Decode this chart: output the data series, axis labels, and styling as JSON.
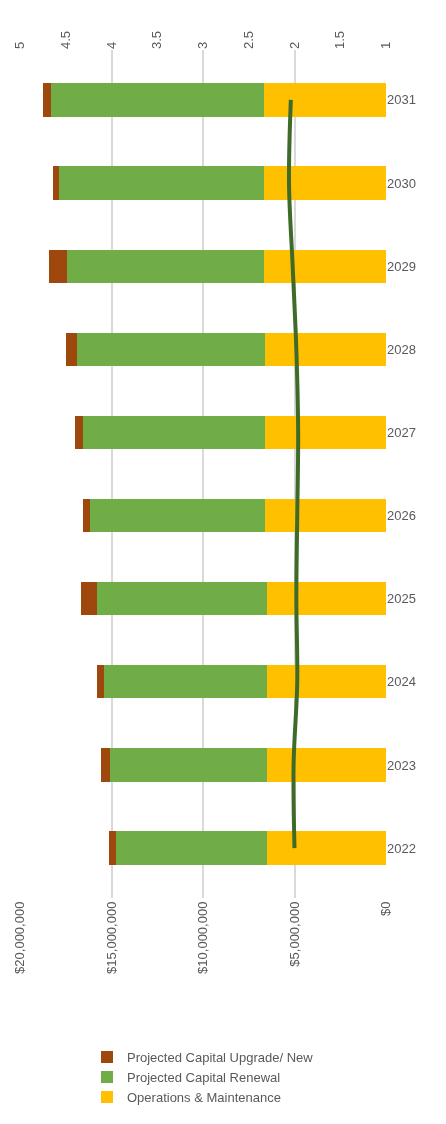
{
  "chart_data": {
    "type": "bar",
    "orientation": "horizontal",
    "stacked": true,
    "categories": [
      "2031",
      "2030",
      "2029",
      "2028",
      "2027",
      "2026",
      "2025",
      "2024",
      "2023",
      "2022"
    ],
    "series": [
      {
        "name": "Operations & Maintenance",
        "color": "#ffc000",
        "values": [
          6670000,
          6670000,
          6670000,
          6600000,
          6600000,
          6600000,
          6500000,
          6500000,
          6500000,
          6500000
        ]
      },
      {
        "name": "Projected Capital Renewal",
        "color": "#70ad47",
        "values": [
          11660000,
          11190000,
          10770000,
          10300000,
          9950000,
          9600000,
          9280000,
          8930000,
          8600000,
          8230000
        ]
      },
      {
        "name": "Projected Capital Upgrade/ New",
        "color": "#9e480e",
        "values": [
          420000,
          360000,
          960000,
          610000,
          470000,
          350000,
          860000,
          350000,
          490000,
          420000
        ]
      },
      {
        "type": "line",
        "axis": "x2",
        "color": "#3e6b2a",
        "values": [
          2.04,
          2.06,
          2.02,
          1.98,
          1.96,
          1.97,
          1.98,
          1.97,
          2.01,
          2.0
        ]
      }
    ],
    "xlim": [
      20000000,
      0
    ],
    "xticks": [
      {
        "value": 20000000,
        "label": "$20,000,000"
      },
      {
        "value": 15000000,
        "label": "$15,000,000"
      },
      {
        "value": 10000000,
        "label": "$10,000,000"
      },
      {
        "value": 5000000,
        "label": "$5,000,000"
      },
      {
        "value": 0,
        "label": "$0"
      }
    ],
    "x2lim": [
      5,
      1
    ],
    "x2ticks": [
      5,
      4.5,
      4,
      3.5,
      3,
      2.5,
      2,
      1.5,
      1
    ],
    "grid": "x",
    "legend": "bottom",
    "marker": "none"
  }
}
